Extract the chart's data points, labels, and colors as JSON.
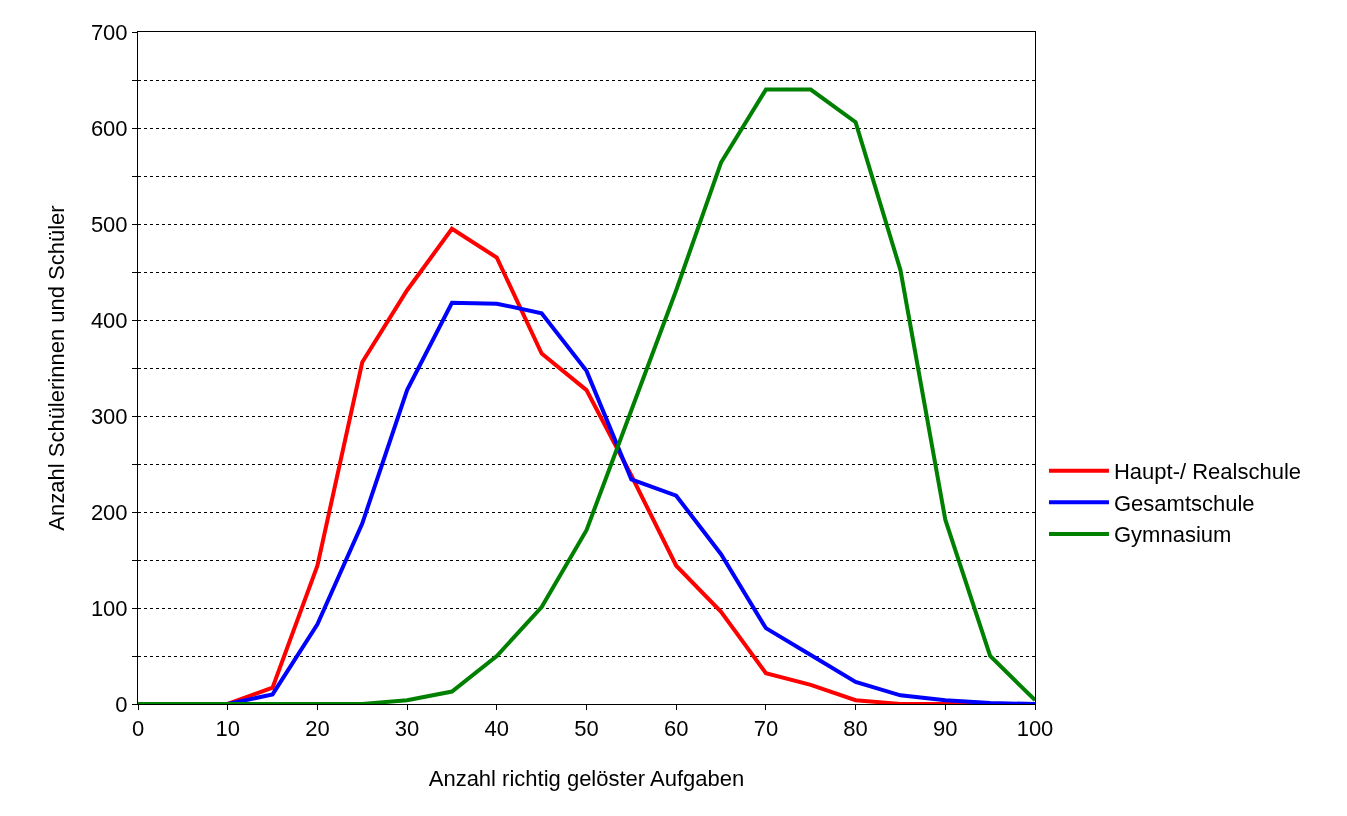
{
  "chart_data": {
    "type": "line",
    "xlabel": "Anzahl richtig gelöster Aufgaben",
    "ylabel": "Anzahl Schülerinnen und Schüler",
    "x": [
      0,
      5,
      10,
      15,
      20,
      25,
      30,
      35,
      40,
      45,
      50,
      55,
      60,
      65,
      70,
      75,
      80,
      85,
      90,
      95,
      100
    ],
    "series": [
      {
        "name": "Haupt-/ Realschule",
        "color": "#ff0000",
        "values": [
          0,
          0,
          0,
          17,
          144,
          356,
          431,
          495,
          465,
          365,
          327,
          238,
          144,
          96,
          32,
          20,
          4,
          0,
          0,
          0,
          0
        ]
      },
      {
        "name": "Gesamtschule",
        "color": "#0000ff",
        "values": [
          0,
          0,
          0,
          10,
          83,
          188,
          327,
          418,
          417,
          407,
          347,
          234,
          217,
          156,
          79,
          51,
          23,
          9,
          4,
          1,
          0
        ]
      },
      {
        "name": "Gymnasium",
        "color": "#008000",
        "values": [
          0,
          0,
          0,
          0,
          0,
          0,
          4,
          13,
          50,
          101,
          181,
          306,
          431,
          564,
          640,
          640,
          606,
          452,
          192,
          50,
          4
        ]
      }
    ],
    "xlim": [
      0,
      100
    ],
    "xticks": [
      0,
      10,
      20,
      30,
      40,
      50,
      60,
      70,
      80,
      90,
      100
    ],
    "ylim": [
      0,
      700
    ],
    "yticks": [
      0,
      {
        "value": 50,
        "label": null
      },
      100,
      {
        "value": 150,
        "label": null
      },
      200,
      {
        "value": 250,
        "label": null
      },
      300,
      {
        "value": 350,
        "label": null
      },
      400,
      {
        "value": 450,
        "label": null
      },
      500,
      {
        "value": 550,
        "label": null
      },
      600,
      {
        "value": 650,
        "label": null
      },
      700
    ],
    "grid": "y",
    "legend": "right",
    "marker": "none",
    "line_style": "solid"
  }
}
